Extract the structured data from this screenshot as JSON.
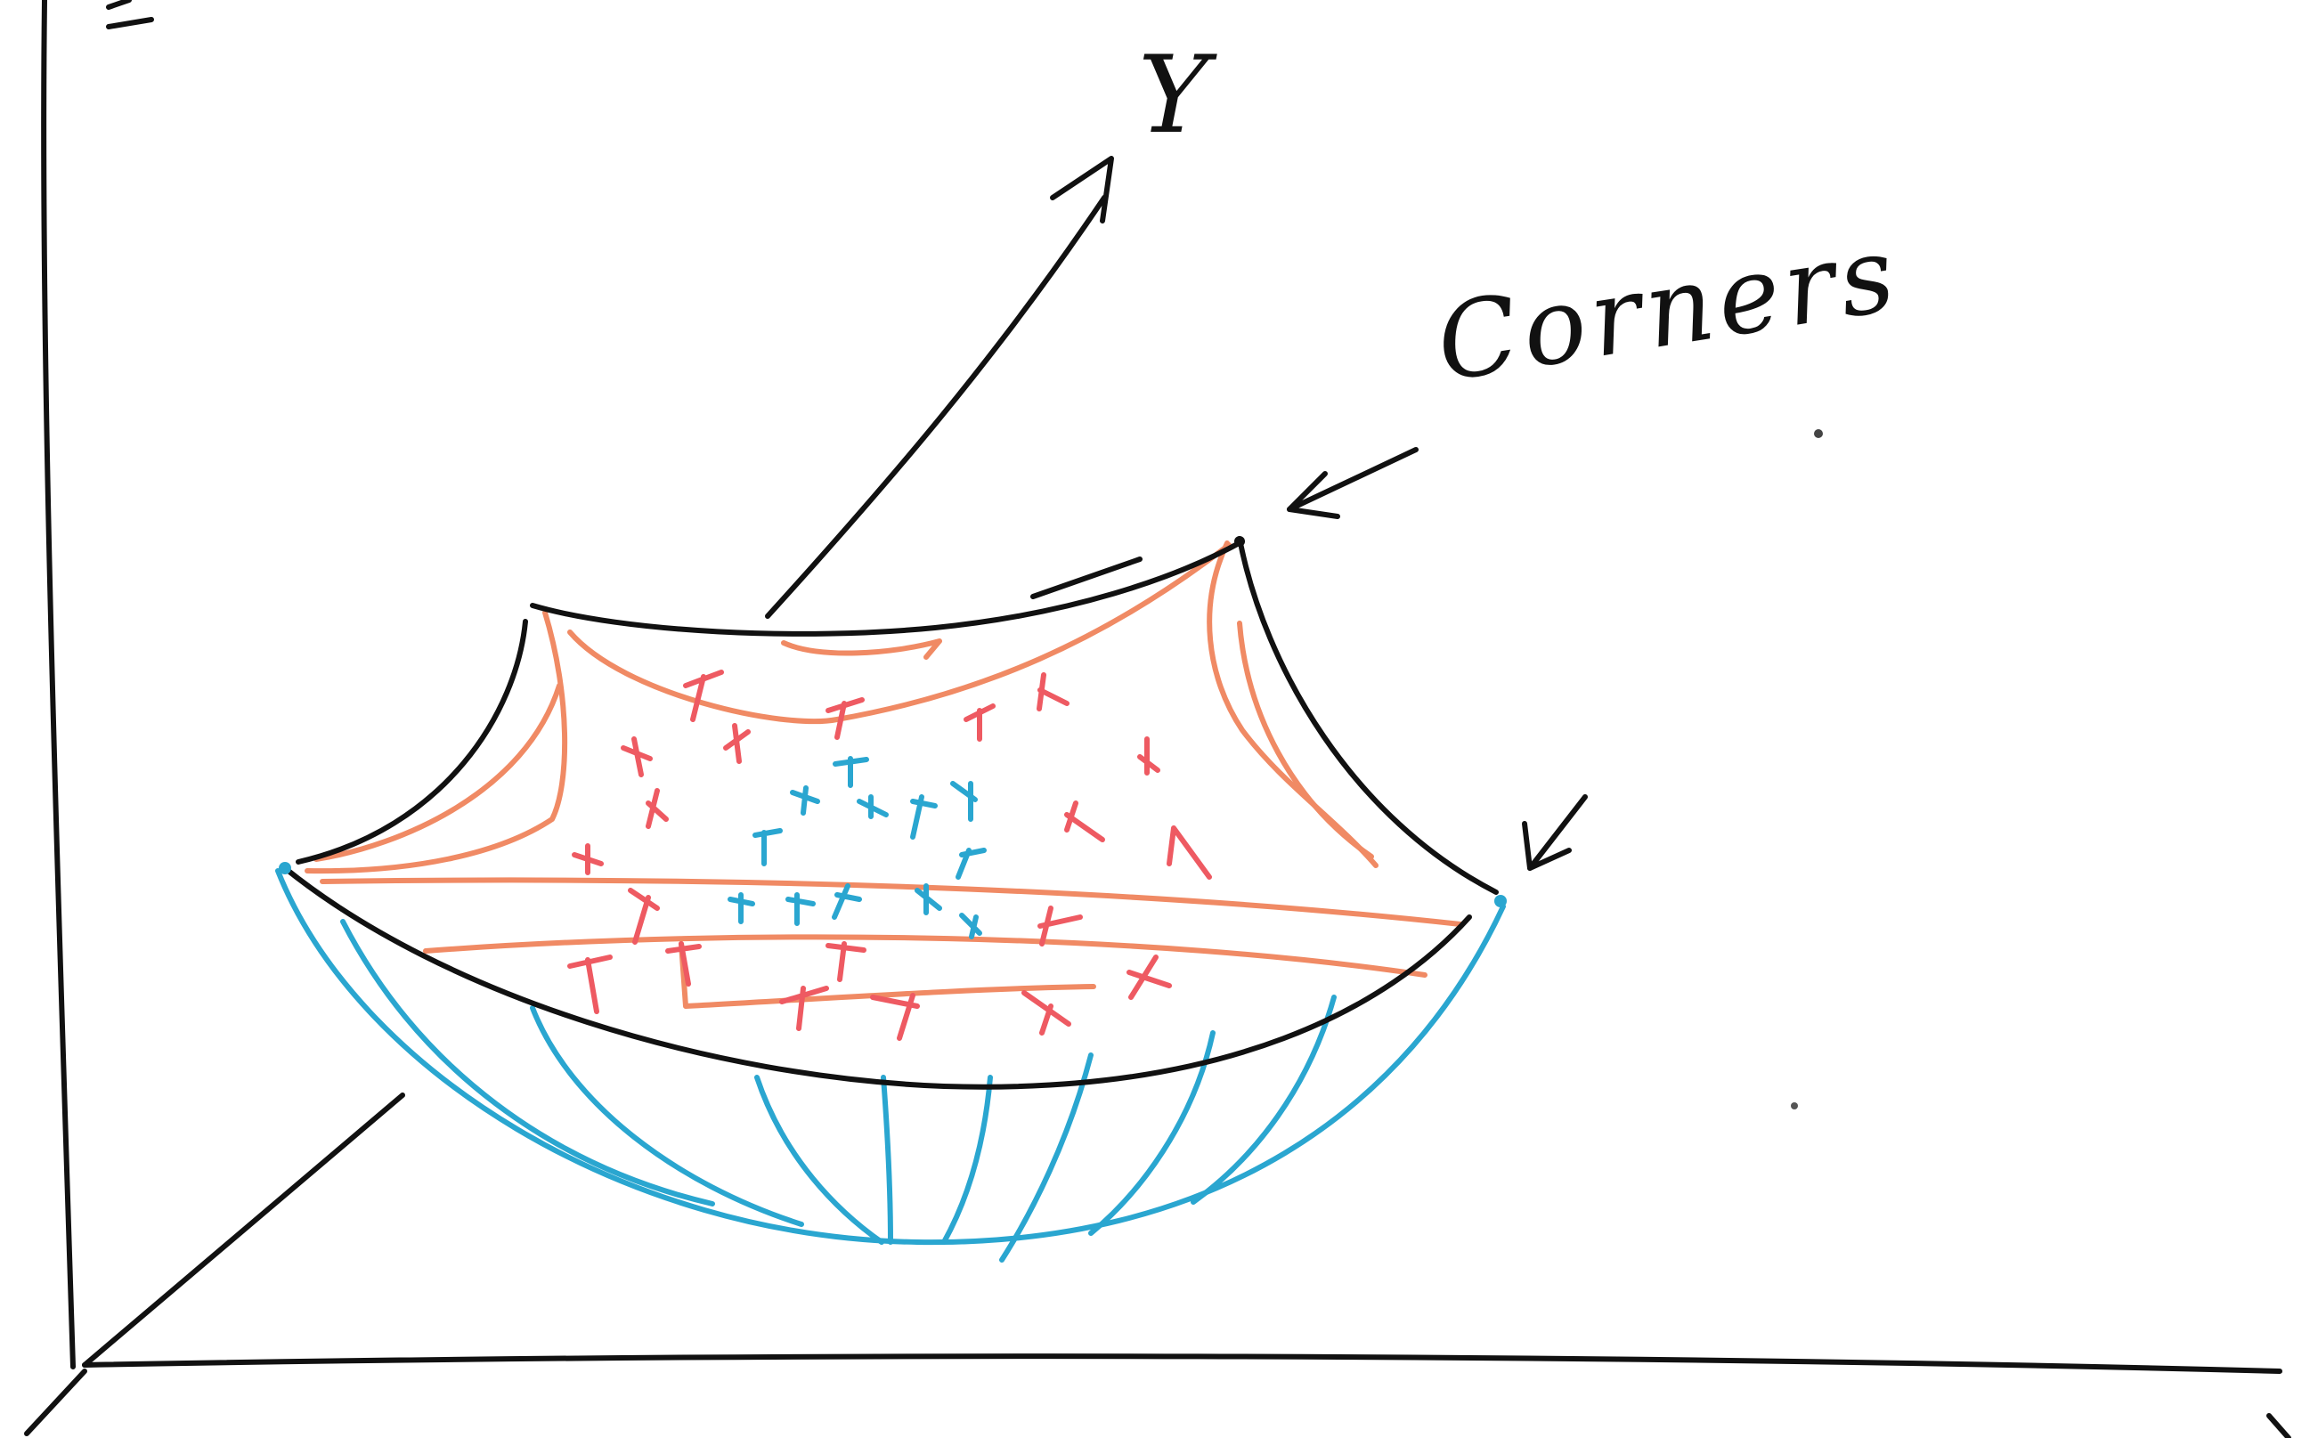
{
  "figure": {
    "axis_labels": {
      "y": "Y"
    },
    "annotation": {
      "text": "Corners",
      "arrow_count": 2
    },
    "colors": {
      "ink": "#111111",
      "lower_surface": "#2aa6d0",
      "upper_surface": "#f08a64",
      "marks_outer": "#ee5a62",
      "marks_inner": "#2aa6d0"
    }
  }
}
